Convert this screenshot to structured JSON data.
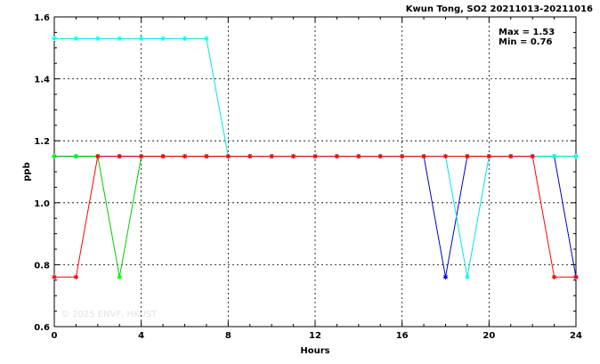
{
  "chart_data": {
    "type": "line",
    "title": "Kwun Tong, SO2 20211013-20211016",
    "xlabel": "Hours",
    "ylabel": "ppb",
    "xlim": [
      0,
      24
    ],
    "ylim": [
      0.6,
      1.6
    ],
    "x_ticks": [
      0,
      4,
      8,
      12,
      16,
      20,
      24
    ],
    "y_ticks": [
      0.6,
      0.8,
      1.0,
      1.2,
      1.4,
      1.6
    ],
    "y_tick_labels": [
      "0.6",
      "0.8",
      "1.0",
      "1.2",
      "1.4",
      "1.6"
    ],
    "grid": true,
    "stats": [
      "Max = 1.53",
      "Min = 0.76"
    ],
    "watermark": "© 2025 ENVF, HKUST",
    "x": [
      0,
      1,
      2,
      3,
      4,
      5,
      6,
      7,
      8,
      9,
      10,
      11,
      12,
      13,
      14,
      15,
      16,
      17,
      18,
      19,
      20,
      21,
      22,
      23,
      24
    ],
    "series": [
      {
        "color": "#0000cc",
        "marker_color": "#0000ff",
        "values": [
          1.15,
          1.15,
          1.15,
          1.15,
          1.15,
          1.15,
          1.15,
          1.15,
          1.15,
          1.15,
          1.15,
          1.15,
          1.15,
          1.15,
          1.15,
          1.15,
          1.15,
          1.15,
          0.76,
          1.15,
          1.15,
          1.15,
          1.15,
          1.15,
          0.76
        ]
      },
      {
        "color": "#00cc00",
        "marker_color": "#00ff00",
        "values": [
          1.15,
          1.15,
          1.15,
          0.76,
          1.15,
          1.15,
          1.15,
          1.15,
          1.15,
          1.15,
          1.15,
          1.15,
          1.15,
          1.15,
          1.15,
          1.15,
          1.15,
          1.15,
          1.15,
          1.15,
          1.15,
          1.15,
          1.15,
          1.15,
          1.15
        ]
      },
      {
        "color": "#00e5e5",
        "marker_color": "#00ffff",
        "values": [
          1.53,
          1.53,
          1.53,
          1.53,
          1.53,
          1.53,
          1.53,
          1.53,
          1.15,
          1.15,
          1.15,
          1.15,
          1.15,
          1.15,
          1.15,
          1.15,
          1.15,
          1.15,
          1.15,
          0.76,
          1.15,
          1.15,
          1.15,
          1.15,
          1.15
        ]
      },
      {
        "color": "#ff0000",
        "marker_color": "#ff0000",
        "values": [
          0.76,
          0.76,
          1.15,
          1.15,
          1.15,
          1.15,
          1.15,
          1.15,
          1.15,
          1.15,
          1.15,
          1.15,
          1.15,
          1.15,
          1.15,
          1.15,
          1.15,
          1.15,
          1.15,
          1.15,
          1.15,
          1.15,
          1.15,
          0.76,
          0.76
        ]
      }
    ]
  }
}
